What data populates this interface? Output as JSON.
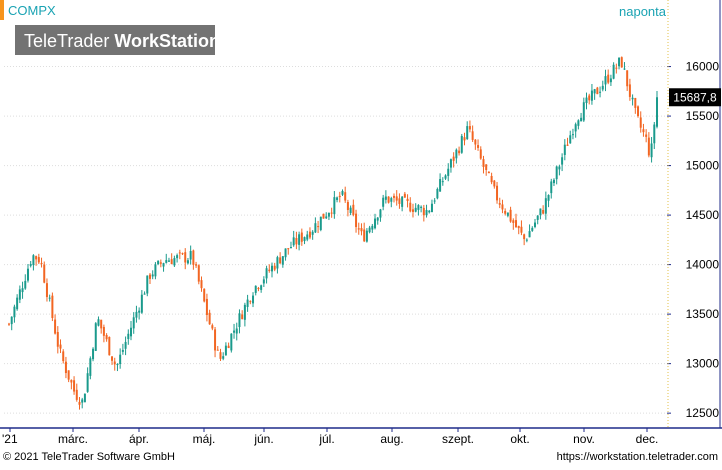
{
  "header": {
    "symbol": "COMPX",
    "interval": "naponta",
    "watermark_light": "TeleTrader ",
    "watermark_bold": "WorkStation",
    "last_price": "15687,8"
  },
  "footer": {
    "copyright": "© 2021  TeleTrader Software GmbH",
    "url": "https://workstation.teletrader.com"
  },
  "colors": {
    "up": "#1a9a8c",
    "down": "#f26522",
    "grid": "#dddddd",
    "axis": "#1f2b8a",
    "accent": "#f7941d",
    "header_text": "#1aa3b3",
    "last_price_bg": "#000000",
    "last_price_text": "#ffffff",
    "watermark_bg": "#737373"
  },
  "chart_data": {
    "type": "candlestick",
    "title": "",
    "xlabel": "",
    "ylabel": "",
    "ylim": [
      12350,
      16450
    ],
    "ytick_values": [
      12500,
      13000,
      13500,
      14000,
      14500,
      15000,
      15500,
      16000
    ],
    "ytick_labels": [
      "12500",
      "13000",
      "13500",
      "14000",
      "14500",
      "15000",
      "15500",
      "16000"
    ],
    "xtick_labels": [
      "'21",
      "márc.",
      "ápr.",
      "máj.",
      "jún.",
      "júl.",
      "aug.",
      "szept.",
      "okt.",
      "nov.",
      "dec."
    ],
    "xtick_positions": [
      0,
      8,
      22,
      24,
      26,
      28,
      30,
      32,
      34,
      36,
      38
    ],
    "grid": true,
    "series": [
      {
        "values": [
          {
            "x": "2021-02-01",
            "close": 13400
          },
          {
            "x": "2021-02-12",
            "close": 14095
          },
          {
            "x": "2021-02-16",
            "close": 14050
          },
          {
            "x": "2021-02-25",
            "close": 13120
          },
          {
            "x": "2021-03-04",
            "close": 12720
          },
          {
            "x": "2021-03-08",
            "close": 12610
          },
          {
            "x": "2021-03-15",
            "close": 13460
          },
          {
            "x": "2021-03-24",
            "close": 12960
          },
          {
            "x": "2021-04-09",
            "close": 13900
          },
          {
            "x": "2021-04-16",
            "close": 14050
          },
          {
            "x": "2021-04-29",
            "close": 14080
          },
          {
            "x": "2021-05-12",
            "close": 13030
          },
          {
            "x": "2021-05-28",
            "close": 13750
          },
          {
            "x": "2021-06-14",
            "close": 14170
          },
          {
            "x": "2021-06-25",
            "close": 14360
          },
          {
            "x": "2021-07-09",
            "close": 14700
          },
          {
            "x": "2021-07-19",
            "close": 14270
          },
          {
            "x": "2021-07-30",
            "close": 14670
          },
          {
            "x": "2021-08-19",
            "close": 14540
          },
          {
            "x": "2021-09-07",
            "close": 15370
          },
          {
            "x": "2021-09-20",
            "close": 14710
          },
          {
            "x": "2021-10-04",
            "close": 14250
          },
          {
            "x": "2021-10-13",
            "close": 14570
          },
          {
            "x": "2021-10-29",
            "close": 15500
          },
          {
            "x": "2021-11-19",
            "close": 16060
          },
          {
            "x": "2021-11-26",
            "close": 15490
          },
          {
            "x": "2021-12-01",
            "close": 15250
          },
          {
            "x": "2021-12-03",
            "close": 15080
          },
          {
            "x": "2021-12-06",
            "close": 15690
          }
        ]
      }
    ]
  }
}
